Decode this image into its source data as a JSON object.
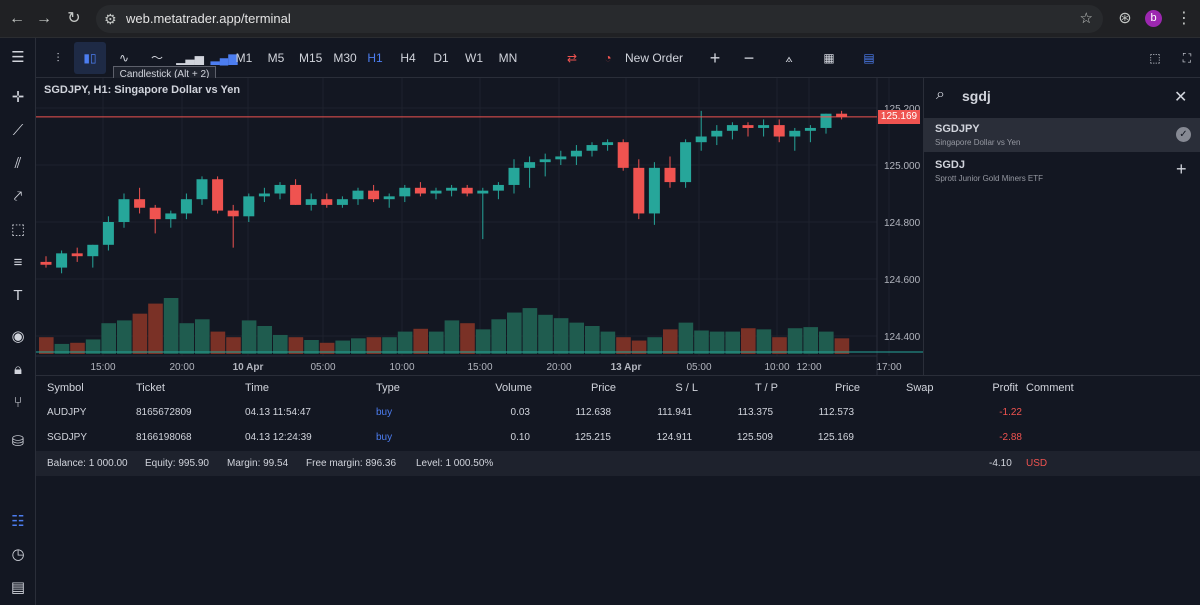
{
  "browser": {
    "url": "web.metatrader.app/terminal",
    "avatar_letter": "b"
  },
  "toolbar": {
    "timeframes": [
      "M1",
      "M5",
      "M15",
      "M30",
      "H1",
      "H4",
      "D1",
      "W1",
      "MN"
    ],
    "active_timeframe": "H1",
    "new_order": "New Order",
    "tooltip": "Candlestick (Alt + 2)"
  },
  "chart": {
    "title": "SGDJPY, H1: Singapore Dollar vs Yen",
    "current_price": "125.169"
  },
  "chart_data": {
    "type": "candlestick",
    "symbol": "SGDJPY",
    "timeframe": "H1",
    "y_ticks": [
      "125.200",
      "125.000",
      "124.800",
      "124.600",
      "124.400"
    ],
    "x_ticks": [
      "15:00",
      "20:00",
      "10 Apr",
      "05:00",
      "10:00",
      "15:00",
      "20:00",
      "13 Apr",
      "05:00",
      "10:00",
      "12:00",
      "17:00"
    ],
    "candles": [
      [
        124.66,
        124.68,
        124.64,
        124.65
      ],
      [
        124.64,
        124.7,
        124.62,
        124.69
      ],
      [
        124.69,
        124.71,
        124.66,
        124.68
      ],
      [
        124.68,
        124.72,
        124.64,
        124.72
      ],
      [
        124.72,
        124.82,
        124.7,
        124.8
      ],
      [
        124.8,
        124.9,
        124.78,
        124.88
      ],
      [
        124.88,
        124.92,
        124.83,
        124.85
      ],
      [
        124.85,
        124.86,
        124.76,
        124.81
      ],
      [
        124.81,
        124.84,
        124.78,
        124.83
      ],
      [
        124.83,
        124.9,
        124.81,
        124.88
      ],
      [
        124.88,
        124.96,
        124.86,
        124.95
      ],
      [
        124.95,
        124.96,
        124.83,
        124.84
      ],
      [
        124.84,
        124.86,
        124.71,
        124.82
      ],
      [
        124.82,
        124.9,
        124.8,
        124.89
      ],
      [
        124.89,
        124.92,
        124.87,
        124.9
      ],
      [
        124.9,
        124.94,
        124.88,
        124.93
      ],
      [
        124.93,
        124.95,
        124.86,
        124.86
      ],
      [
        124.86,
        124.9,
        124.84,
        124.88
      ],
      [
        124.88,
        124.9,
        124.85,
        124.86
      ],
      [
        124.86,
        124.89,
        124.85,
        124.88
      ],
      [
        124.88,
        124.92,
        124.86,
        124.91
      ],
      [
        124.91,
        124.93,
        124.87,
        124.88
      ],
      [
        124.88,
        124.9,
        124.85,
        124.89
      ],
      [
        124.89,
        124.93,
        124.87,
        124.92
      ],
      [
        124.92,
        124.94,
        124.89,
        124.9
      ],
      [
        124.9,
        124.92,
        124.88,
        124.91
      ],
      [
        124.91,
        124.93,
        124.89,
        124.92
      ],
      [
        124.92,
        124.93,
        124.89,
        124.9
      ],
      [
        124.9,
        124.92,
        124.74,
        124.91
      ],
      [
        124.91,
        124.94,
        124.88,
        124.93
      ],
      [
        124.93,
        125.02,
        124.9,
        124.99
      ],
      [
        124.99,
        125.03,
        124.92,
        125.01
      ],
      [
        125.01,
        125.04,
        124.96,
        125.02
      ],
      [
        125.02,
        125.05,
        125.0,
        125.03
      ],
      [
        125.03,
        125.07,
        125.0,
        125.05
      ],
      [
        125.05,
        125.08,
        125.03,
        125.07
      ],
      [
        125.07,
        125.09,
        125.05,
        125.08
      ],
      [
        125.08,
        125.09,
        124.98,
        124.99
      ],
      [
        124.99,
        125.02,
        124.81,
        124.83
      ],
      [
        124.83,
        125.01,
        124.79,
        124.99
      ],
      [
        124.99,
        125.03,
        124.92,
        124.94
      ],
      [
        124.94,
        125.09,
        124.92,
        125.08
      ],
      [
        125.08,
        125.19,
        125.05,
        125.1
      ],
      [
        125.1,
        125.14,
        125.07,
        125.12
      ],
      [
        125.12,
        125.15,
        125.09,
        125.14
      ],
      [
        125.14,
        125.15,
        125.1,
        125.13
      ],
      [
        125.13,
        125.16,
        125.1,
        125.14
      ],
      [
        125.14,
        125.16,
        125.08,
        125.1
      ],
      [
        125.1,
        125.13,
        125.05,
        125.12
      ],
      [
        125.12,
        125.14,
        125.08,
        125.13
      ],
      [
        125.13,
        125.18,
        125.11,
        125.18
      ],
      [
        125.18,
        125.19,
        125.16,
        125.17
      ]
    ],
    "volumes": [
      30,
      18,
      20,
      26,
      55,
      60,
      72,
      90,
      100,
      55,
      62,
      40,
      30,
      60,
      50,
      34,
      30,
      25,
      20,
      24,
      28,
      30,
      30,
      40,
      45,
      40,
      60,
      55,
      44,
      62,
      74,
      82,
      70,
      64,
      56,
      50,
      40,
      30,
      24,
      30,
      44,
      56,
      42,
      40,
      40,
      46,
      44,
      30,
      46,
      48,
      40,
      28
    ]
  },
  "search": {
    "query": "sgdj",
    "results": [
      {
        "symbol": "SGDJPY",
        "description": "Singapore Dollar vs Yen"
      },
      {
        "symbol": "SGDJ",
        "description": "Sprott Junior Gold Miners ETF"
      }
    ]
  },
  "positions": {
    "headers": [
      "Symbol",
      "Ticket",
      "Time",
      "Type",
      "Volume",
      "Price",
      "S / L",
      "T / P",
      "Price",
      "Swap",
      "Profit",
      "Comment"
    ],
    "rows": [
      {
        "symbol": "AUDJPY",
        "ticket": "8165672809",
        "time": "04.13 11:54:47",
        "type": "buy",
        "volume": "0.03",
        "price": "112.638",
        "sl": "111.941",
        "tp": "113.375",
        "cur": "112.573",
        "profit": "-1.22"
      },
      {
        "symbol": "SGDJPY",
        "ticket": "8166198068",
        "time": "04.13 12:24:39",
        "type": "buy",
        "volume": "0.10",
        "price": "125.215",
        "sl": "124.911",
        "tp": "125.509",
        "cur": "125.169",
        "profit": "-2.88"
      }
    ]
  },
  "account": {
    "balance": "Balance: 1 000.00",
    "equity": "Equity: 995.90",
    "margin": "Margin: 99.54",
    "free_margin": "Free margin: 896.36",
    "level": "Level: 1 000.50%",
    "total_profit": "-4.10",
    "currency": "USD"
  },
  "colors": {
    "up": "#26a69a",
    "down": "#ef5350",
    "accent": "#4c7df0"
  }
}
